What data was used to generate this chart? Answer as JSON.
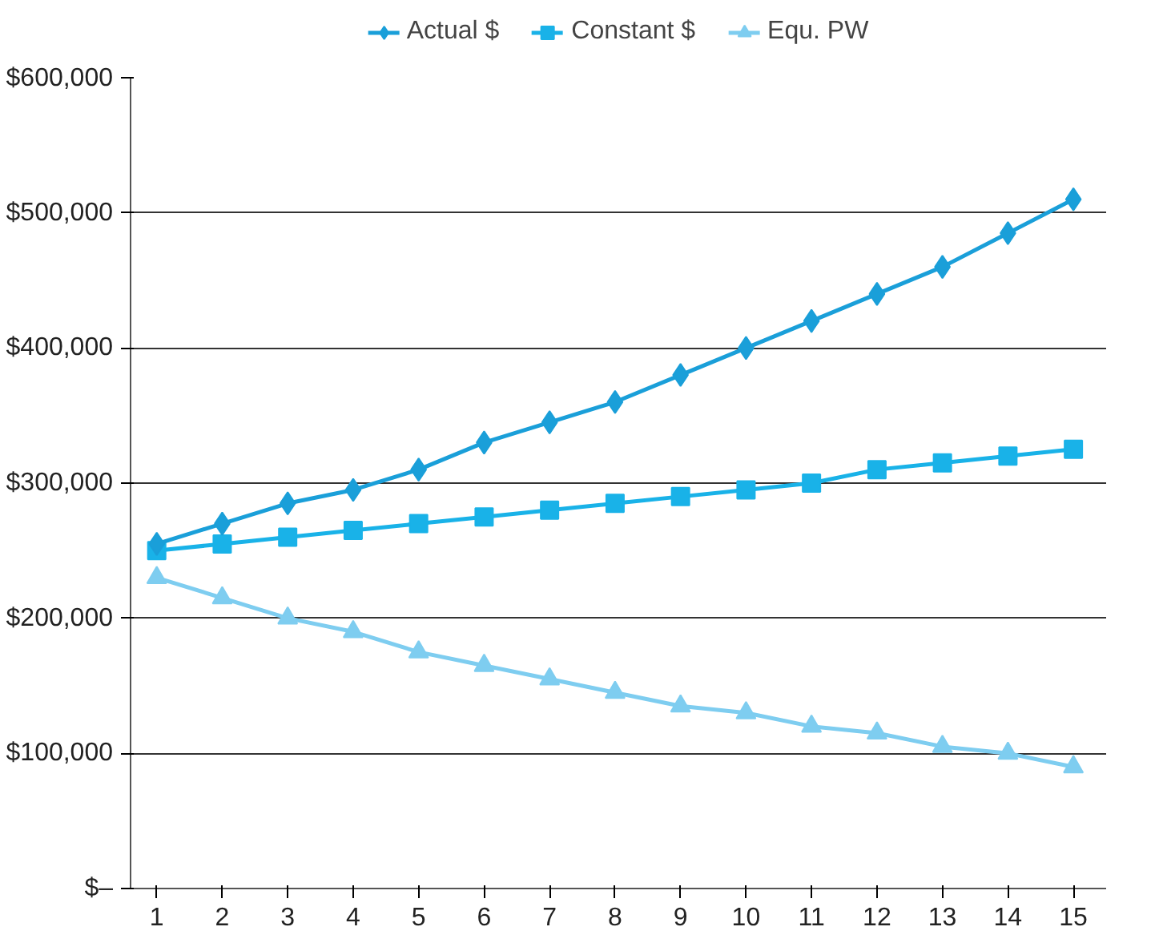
{
  "chart_data": {
    "type": "line",
    "x": [
      1,
      2,
      3,
      4,
      5,
      6,
      7,
      8,
      9,
      10,
      11,
      12,
      13,
      14,
      15
    ],
    "xlim": [
      0.6,
      15.5
    ],
    "xticks": [
      1,
      2,
      3,
      4,
      5,
      6,
      7,
      8,
      9,
      10,
      11,
      12,
      13,
      14,
      15
    ],
    "ylim": [
      0,
      600000
    ],
    "yticks": [
      {
        "value": 0,
        "label": "$–"
      },
      {
        "value": 100000,
        "label": "$100,000"
      },
      {
        "value": 200000,
        "label": "$200,000"
      },
      {
        "value": 300000,
        "label": "$300,000"
      },
      {
        "value": 400000,
        "label": "$400,000"
      },
      {
        "value": 500000,
        "label": "$500,000"
      },
      {
        "value": 600000,
        "label": "$600,000"
      }
    ],
    "grid": "y",
    "legend": "top",
    "line_style": "solid",
    "series": [
      {
        "name": "Actual $",
        "color": "#1a9fd9",
        "marker": "diamond",
        "values": [
          255000,
          270000,
          285000,
          295000,
          310000,
          330000,
          345000,
          360000,
          380000,
          400000,
          420000,
          440000,
          460000,
          485000,
          510000
        ]
      },
      {
        "name": "Constant $",
        "color": "#19b2e8",
        "marker": "square",
        "values": [
          250000,
          255000,
          260000,
          265000,
          270000,
          275000,
          280000,
          285000,
          290000,
          295000,
          300000,
          310000,
          315000,
          320000,
          325000
        ]
      },
      {
        "name": "Equ. PW",
        "color": "#7ecdf0",
        "marker": "triangle",
        "values": [
          230000,
          215000,
          200000,
          190000,
          175000,
          165000,
          155000,
          145000,
          135000,
          130000,
          120000,
          115000,
          105000,
          100000,
          90000
        ]
      }
    ]
  }
}
